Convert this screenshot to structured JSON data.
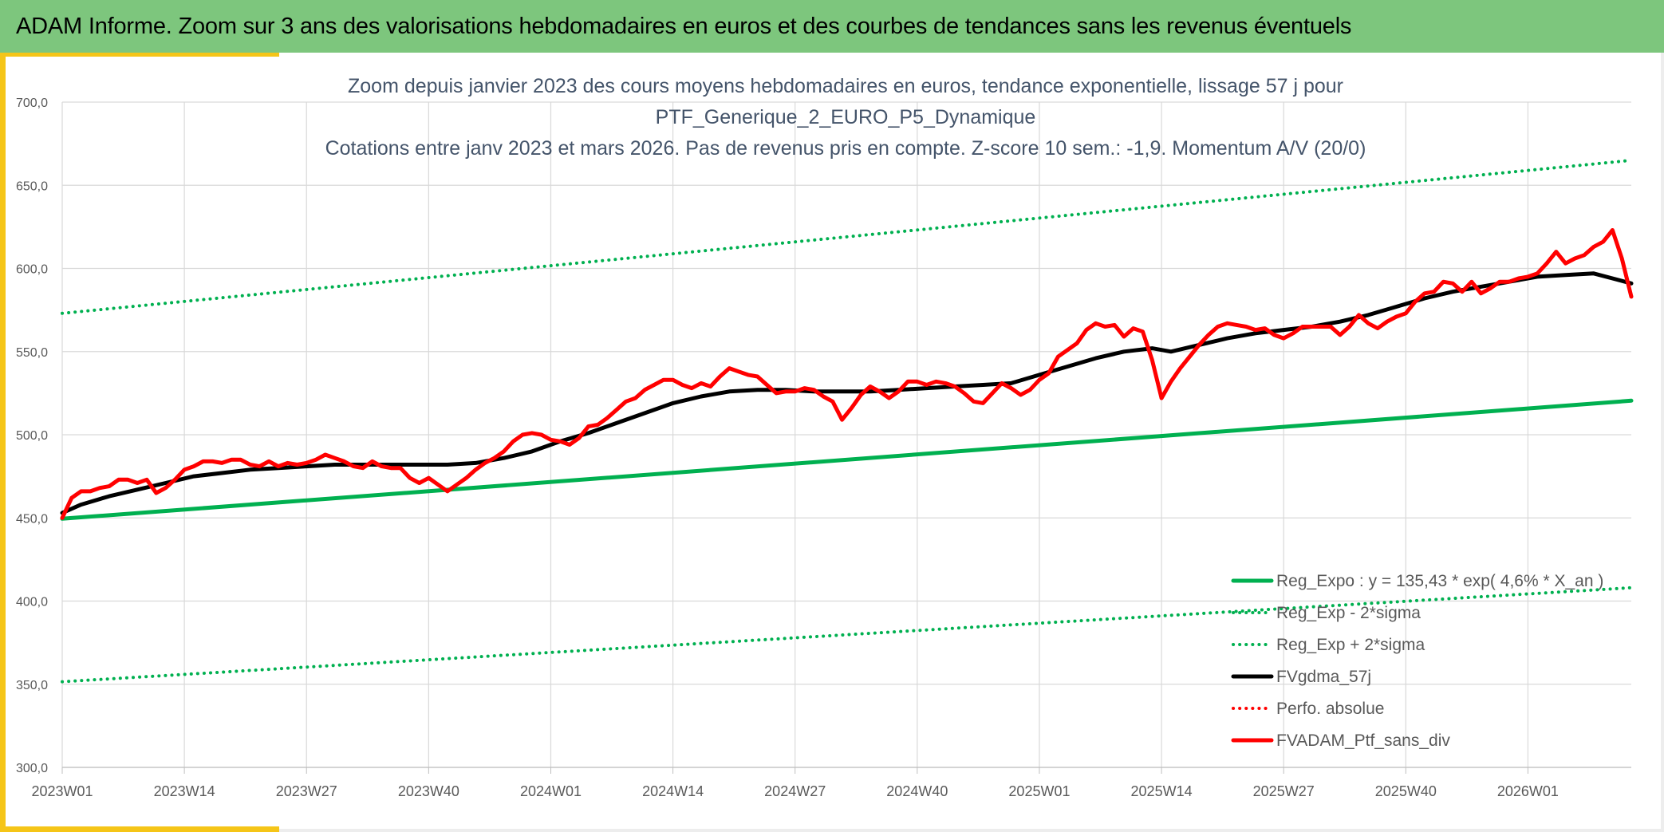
{
  "header": {
    "title": "ADAM Informe. Zoom sur 3 ans des valorisations hebdomadaires en euros et des courbes de tendances sans les revenus éventuels"
  },
  "chart_data": {
    "type": "line",
    "title_lines": [
      "Zoom depuis janvier 2023 des cours moyens hebdomadaires en euros, tendance exponentielle, lissage 57 j pour",
      "PTF_Generique_2_EURO_P5_Dynamique",
      "Cotations entre janv 2023 et mars 2026. Pas de revenus pris en compte. Z-score 10 sem.: -1,9. Momentum A/V (20/0)"
    ],
    "xlabel": "",
    "ylabel": "",
    "ylim": [
      300,
      700
    ],
    "y_ticks": [
      "300,0",
      "350,0",
      "400,0",
      "450,0",
      "500,0",
      "550,0",
      "600,0",
      "650,0",
      "700,0"
    ],
    "x_ticks": [
      "2023W01",
      "2023W14",
      "2023W27",
      "2023W40",
      "2024W01",
      "2024W14",
      "2024W27",
      "2024W40",
      "2025W01",
      "2025W14",
      "2025W27",
      "2025W40",
      "2026W01"
    ],
    "x_start": "2023W01",
    "x_end": "2026W12",
    "grid": true,
    "legend_position": "bottom-right",
    "series": [
      {
        "name": "Reg_Expo : y = 135,43 * exp( 4,6% *  X_an )",
        "color": "#00b050",
        "style": "solid",
        "points": [
          [
            "2023W01",
            449.5
          ],
          [
            "2026W12",
            520.5
          ]
        ]
      },
      {
        "name": "Reg_Exp - 2*sigma",
        "color": "#00b050",
        "style": "dotted",
        "points": [
          [
            "2023W01",
            351.5
          ],
          [
            "2026W12",
            408.0
          ]
        ]
      },
      {
        "name": "Reg_Exp + 2*sigma",
        "color": "#00b050",
        "style": "dotted",
        "points": [
          [
            "2023W01",
            573.0
          ],
          [
            "2026W12",
            665.0
          ]
        ]
      },
      {
        "name": "FVgdma_57j",
        "color": "#000000",
        "style": "solid",
        "points": [
          [
            "2023W01",
            453
          ],
          [
            "2023W03",
            458
          ],
          [
            "2023W06",
            463
          ],
          [
            "2023W09",
            467
          ],
          [
            "2023W12",
            471
          ],
          [
            "2023W15",
            475
          ],
          [
            "2023W18",
            477
          ],
          [
            "2023W21",
            479
          ],
          [
            "2023W24",
            480
          ],
          [
            "2023W27",
            481
          ],
          [
            "2023W30",
            482
          ],
          [
            "2023W33",
            482
          ],
          [
            "2023W36",
            482
          ],
          [
            "2023W39",
            482
          ],
          [
            "2023W42",
            482
          ],
          [
            "2023W45",
            483
          ],
          [
            "2023W48",
            486
          ],
          [
            "2023W51",
            490
          ],
          [
            "2024W02",
            496
          ],
          [
            "2024W05",
            501
          ],
          [
            "2024W08",
            507
          ],
          [
            "2024W11",
            513
          ],
          [
            "2024W14",
            519
          ],
          [
            "2024W17",
            523
          ],
          [
            "2024W20",
            526
          ],
          [
            "2024W23",
            527
          ],
          [
            "2024W26",
            527
          ],
          [
            "2024W29",
            526
          ],
          [
            "2024W32",
            526
          ],
          [
            "2024W35",
            526
          ],
          [
            "2024W38",
            527
          ],
          [
            "2024W41",
            528
          ],
          [
            "2024W44",
            529
          ],
          [
            "2024W47",
            530
          ],
          [
            "2024W50",
            531
          ],
          [
            "2025W01",
            536
          ],
          [
            "2025W04",
            541
          ],
          [
            "2025W07",
            546
          ],
          [
            "2025W10",
            550
          ],
          [
            "2025W13",
            552
          ],
          [
            "2025W15",
            550
          ],
          [
            "2025W18",
            554
          ],
          [
            "2025W21",
            558
          ],
          [
            "2025W24",
            561
          ],
          [
            "2025W27",
            563
          ],
          [
            "2025W30",
            565
          ],
          [
            "2025W33",
            568
          ],
          [
            "2025W36",
            572
          ],
          [
            "2025W39",
            577
          ],
          [
            "2025W42",
            582
          ],
          [
            "2025W45",
            586
          ],
          [
            "2025W48",
            589
          ],
          [
            "2025W51",
            592
          ],
          [
            "2026W02",
            595
          ],
          [
            "2026W05",
            596
          ],
          [
            "2026W08",
            597
          ],
          [
            "2026W10",
            594
          ],
          [
            "2026W12",
            591
          ]
        ]
      },
      {
        "name": "Perfo. absolue",
        "color": "#ff0000",
        "style": "dotted",
        "points": []
      },
      {
        "name": "FVADAM_Ptf_sans_div",
        "color": "#ff0000",
        "style": "solid",
        "points": [
          [
            "2023W01",
            450
          ],
          [
            "2023W02",
            462
          ],
          [
            "2023W03",
            466
          ],
          [
            "2023W04",
            466
          ],
          [
            "2023W05",
            468
          ],
          [
            "2023W06",
            469
          ],
          [
            "2023W07",
            473
          ],
          [
            "2023W08",
            473
          ],
          [
            "2023W09",
            471
          ],
          [
            "2023W10",
            473
          ],
          [
            "2023W11",
            465
          ],
          [
            "2023W12",
            468
          ],
          [
            "2023W13",
            473
          ],
          [
            "2023W14",
            479
          ],
          [
            "2023W15",
            481
          ],
          [
            "2023W16",
            484
          ],
          [
            "2023W17",
            484
          ],
          [
            "2023W18",
            483
          ],
          [
            "2023W19",
            485
          ],
          [
            "2023W20",
            485
          ],
          [
            "2023W21",
            482
          ],
          [
            "2023W22",
            481
          ],
          [
            "2023W23",
            484
          ],
          [
            "2023W24",
            481
          ],
          [
            "2023W25",
            483
          ],
          [
            "2023W26",
            482
          ],
          [
            "2023W27",
            483
          ],
          [
            "2023W28",
            485
          ],
          [
            "2023W29",
            488
          ],
          [
            "2023W30",
            486
          ],
          [
            "2023W31",
            484
          ],
          [
            "2023W32",
            481
          ],
          [
            "2023W33",
            480
          ],
          [
            "2023W34",
            484
          ],
          [
            "2023W35",
            481
          ],
          [
            "2023W36",
            480
          ],
          [
            "2023W37",
            480
          ],
          [
            "2023W38",
            474
          ],
          [
            "2023W39",
            471
          ],
          [
            "2023W40",
            474
          ],
          [
            "2023W41",
            470
          ],
          [
            "2023W42",
            466
          ],
          [
            "2023W43",
            470
          ],
          [
            "2023W44",
            474
          ],
          [
            "2023W45",
            479
          ],
          [
            "2023W46",
            483
          ],
          [
            "2023W47",
            486
          ],
          [
            "2023W48",
            490
          ],
          [
            "2023W49",
            496
          ],
          [
            "2023W50",
            500
          ],
          [
            "2023W51",
            501
          ],
          [
            "2023W52",
            500
          ],
          [
            "2024W01",
            497
          ],
          [
            "2024W02",
            496
          ],
          [
            "2024W03",
            494
          ],
          [
            "2024W04",
            498
          ],
          [
            "2024W05",
            505
          ],
          [
            "2024W06",
            506
          ],
          [
            "2024W07",
            510
          ],
          [
            "2024W08",
            515
          ],
          [
            "2024W09",
            520
          ],
          [
            "2024W10",
            522
          ],
          [
            "2024W11",
            527
          ],
          [
            "2024W12",
            530
          ],
          [
            "2024W13",
            533
          ],
          [
            "2024W14",
            533
          ],
          [
            "2024W15",
            530
          ],
          [
            "2024W16",
            528
          ],
          [
            "2024W17",
            531
          ],
          [
            "2024W18",
            529
          ],
          [
            "2024W19",
            535
          ],
          [
            "2024W20",
            540
          ],
          [
            "2024W21",
            538
          ],
          [
            "2024W22",
            536
          ],
          [
            "2024W23",
            535
          ],
          [
            "2024W24",
            530
          ],
          [
            "2024W25",
            525
          ],
          [
            "2024W26",
            526
          ],
          [
            "2024W27",
            526
          ],
          [
            "2024W28",
            528
          ],
          [
            "2024W29",
            527
          ],
          [
            "2024W30",
            523
          ],
          [
            "2024W31",
            520
          ],
          [
            "2024W32",
            509
          ],
          [
            "2024W33",
            516
          ],
          [
            "2024W34",
            524
          ],
          [
            "2024W35",
            529
          ],
          [
            "2024W36",
            526
          ],
          [
            "2024W37",
            522
          ],
          [
            "2024W38",
            526
          ],
          [
            "2024W39",
            532
          ],
          [
            "2024W40",
            532
          ],
          [
            "2024W41",
            530
          ],
          [
            "2024W42",
            532
          ],
          [
            "2024W43",
            531
          ],
          [
            "2024W44",
            529
          ],
          [
            "2024W45",
            525
          ],
          [
            "2024W46",
            520
          ],
          [
            "2024W47",
            519
          ],
          [
            "2024W48",
            525
          ],
          [
            "2024W49",
            531
          ],
          [
            "2024W50",
            528
          ],
          [
            "2024W51",
            524
          ],
          [
            "2024W52",
            527
          ],
          [
            "2025W01",
            533
          ],
          [
            "2025W02",
            537
          ],
          [
            "2025W03",
            547
          ],
          [
            "2025W04",
            551
          ],
          [
            "2025W05",
            555
          ],
          [
            "2025W06",
            563
          ],
          [
            "2025W07",
            567
          ],
          [
            "2025W08",
            565
          ],
          [
            "2025W09",
            566
          ],
          [
            "2025W10",
            559
          ],
          [
            "2025W11",
            564
          ],
          [
            "2025W12",
            562
          ],
          [
            "2025W13",
            545
          ],
          [
            "2025W14",
            522
          ],
          [
            "2025W15",
            532
          ],
          [
            "2025W16",
            540
          ],
          [
            "2025W17",
            547
          ],
          [
            "2025W18",
            554
          ],
          [
            "2025W19",
            560
          ],
          [
            "2025W20",
            565
          ],
          [
            "2025W21",
            567
          ],
          [
            "2025W22",
            566
          ],
          [
            "2025W23",
            565
          ],
          [
            "2025W24",
            563
          ],
          [
            "2025W25",
            564
          ],
          [
            "2025W26",
            560
          ],
          [
            "2025W27",
            558
          ],
          [
            "2025W28",
            561
          ],
          [
            "2025W29",
            565
          ],
          [
            "2025W30",
            565
          ],
          [
            "2025W31",
            565
          ],
          [
            "2025W32",
            565
          ],
          [
            "2025W33",
            560
          ],
          [
            "2025W34",
            565
          ],
          [
            "2025W35",
            572
          ],
          [
            "2025W36",
            567
          ],
          [
            "2025W37",
            564
          ],
          [
            "2025W38",
            568
          ],
          [
            "2025W39",
            571
          ],
          [
            "2025W40",
            573
          ],
          [
            "2025W41",
            580
          ],
          [
            "2025W42",
            585
          ],
          [
            "2025W43",
            586
          ],
          [
            "2025W44",
            592
          ],
          [
            "2025W45",
            591
          ],
          [
            "2025W46",
            586
          ],
          [
            "2025W47",
            592
          ],
          [
            "2025W48",
            585
          ],
          [
            "2025W49",
            588
          ],
          [
            "2025W50",
            592
          ],
          [
            "2025W51",
            592
          ],
          [
            "2025W52",
            594
          ],
          [
            "2026W01",
            595
          ],
          [
            "2026W02",
            597
          ],
          [
            "2026W03",
            603
          ],
          [
            "2026W04",
            610
          ],
          [
            "2026W05",
            603
          ],
          [
            "2026W06",
            606
          ],
          [
            "2026W07",
            608
          ],
          [
            "2026W08",
            613
          ],
          [
            "2026W09",
            616
          ],
          [
            "2026W10",
            623
          ],
          [
            "2026W11",
            606
          ],
          [
            "2026W12",
            583
          ]
        ]
      }
    ]
  }
}
